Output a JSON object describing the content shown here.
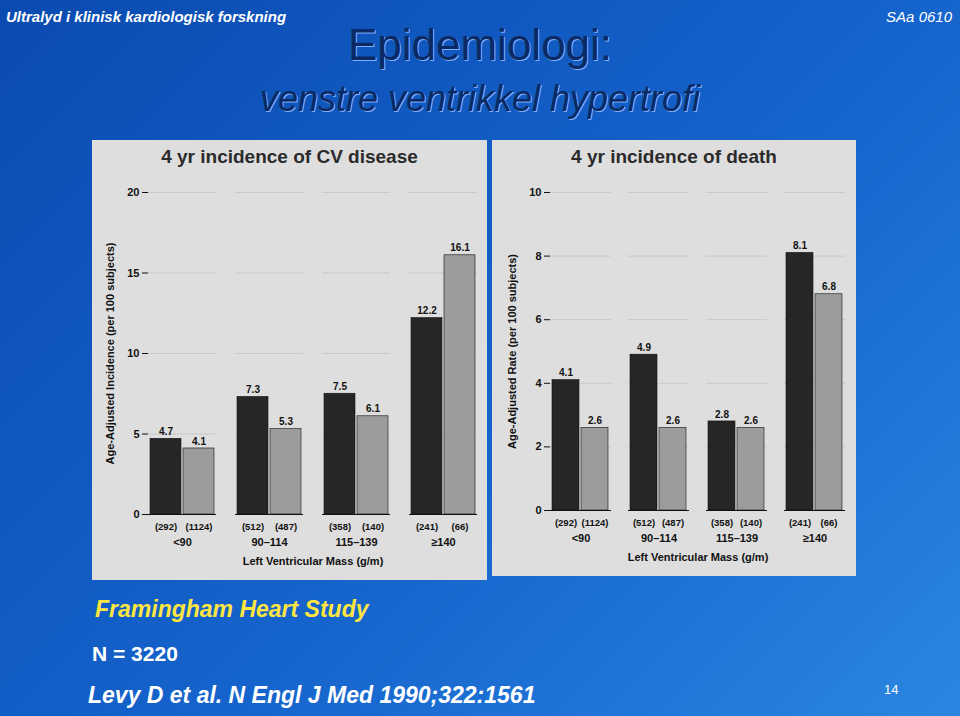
{
  "slide": {
    "header": "Ultralyd i klinisk kardiologisk forskning",
    "code": "SAa 0610",
    "title": "Epidemiologi:",
    "subtitle": "venstre ventrikkel hypertrofi",
    "study": "Framingham Heart Study",
    "n": "N = 3220",
    "reference": "Levy D et al. N Engl J Med  1990;322:1561",
    "page": "14"
  },
  "chart_data": [
    {
      "type": "bar",
      "title": "4 yr incidence of CV disease",
      "xlabel": "Left Ventricular Mass (g/m)",
      "ylabel": "Age-Adjusted Incidence (per 100 subjects)",
      "categories": [
        "<90",
        "90–114",
        "115–139",
        "≥140"
      ],
      "series": [
        {
          "color": "#262626",
          "values": [
            4.7,
            7.3,
            7.5,
            12.2
          ],
          "sample_sizes": [
            "(292)",
            "(512)",
            "(358)",
            "(241)"
          ]
        },
        {
          "color": "#9c9c9c",
          "values": [
            4.1,
            5.3,
            6.1,
            16.1
          ],
          "sample_sizes": [
            "(1124)",
            "(487)",
            "(140)",
            "(66)"
          ]
        }
      ],
      "ylim": [
        0,
        20
      ],
      "yticks": [
        0,
        5,
        10,
        15,
        20
      ],
      "grid": true,
      "data_labels": true
    },
    {
      "type": "bar",
      "title": "4 yr incidence of death",
      "xlabel": "Left Ventricular Mass (g/m)",
      "ylabel": "Age-Adjusted Rate (per 100 subjects)",
      "categories": [
        "<90",
        "90–114",
        "115–139",
        "≥140"
      ],
      "series": [
        {
          "color": "#262626",
          "values": [
            4.1,
            4.9,
            2.8,
            8.1
          ],
          "sample_sizes": [
            "(292)",
            "(512)",
            "(358)",
            "(241)"
          ]
        },
        {
          "color": "#9c9c9c",
          "values": [
            2.6,
            2.6,
            2.6,
            6.8
          ],
          "sample_sizes": [
            "(1124)",
            "(487)",
            "(140)",
            "(66)"
          ]
        }
      ],
      "ylim": [
        0,
        10
      ],
      "yticks": [
        0,
        2,
        4,
        6,
        8,
        10
      ],
      "grid": true,
      "data_labels": true
    }
  ]
}
